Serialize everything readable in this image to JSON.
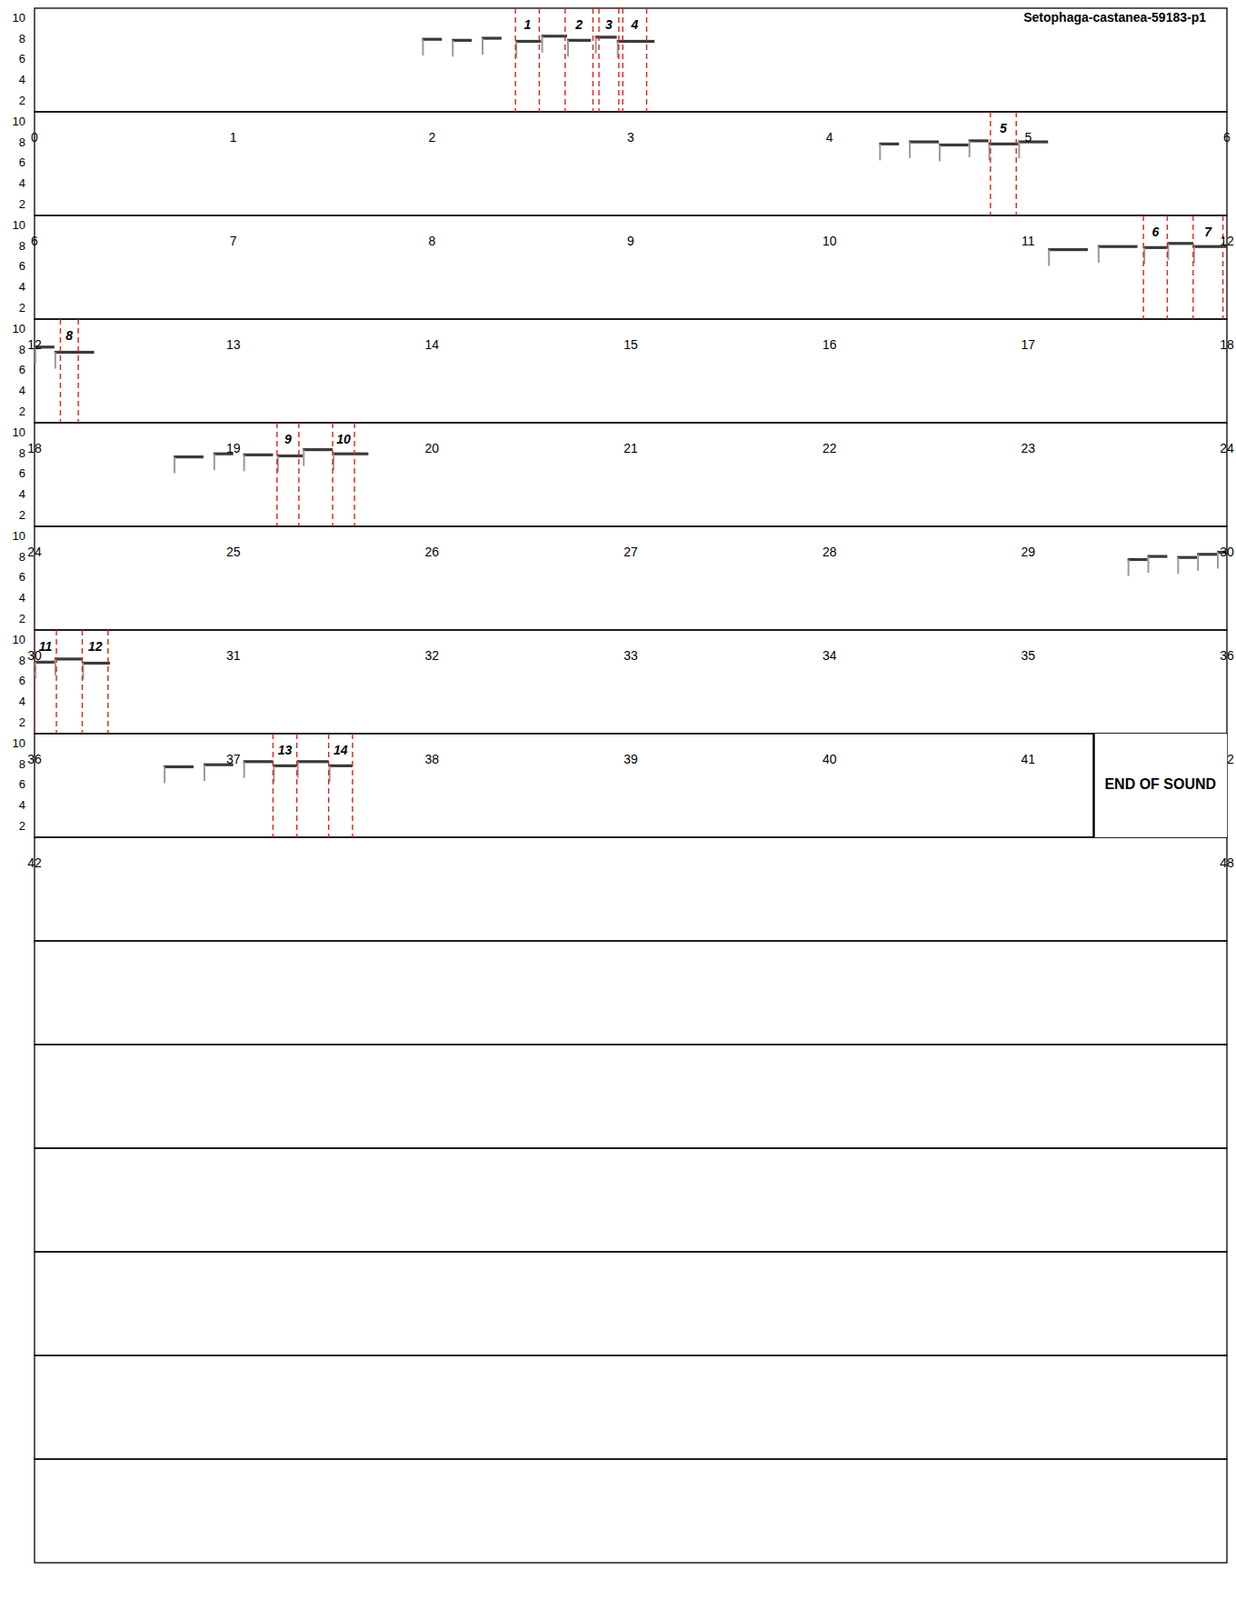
{
  "chart_data": {
    "type": "spectrogram",
    "title": "Setophaga-castanea-59183-p1",
    "ylim": [
      1,
      11
    ],
    "yticks": [
      2,
      4,
      6,
      8,
      10
    ],
    "rows": [
      {
        "xlim": [
          0,
          6
        ],
        "xticks": [
          0,
          1,
          2,
          3,
          4,
          5,
          6
        ],
        "notes": [
          {
            "start": 1.95,
            "end": 2.05,
            "freq": 8.0
          },
          {
            "start": 2.1,
            "end": 2.2,
            "freq": 7.9
          },
          {
            "start": 2.25,
            "end": 2.35,
            "freq": 8.1
          },
          {
            "start": 2.42,
            "end": 2.55,
            "freq": 7.8
          },
          {
            "start": 2.55,
            "end": 2.68,
            "freq": 8.3
          },
          {
            "start": 2.68,
            "end": 2.8,
            "freq": 7.9
          },
          {
            "start": 2.82,
            "end": 2.93,
            "freq": 8.2
          },
          {
            "start": 2.93,
            "end": 3.12,
            "freq": 7.8
          }
        ],
        "segments": [
          {
            "label": "1",
            "start": 2.42,
            "end": 2.54
          },
          {
            "label": "2",
            "start": 2.67,
            "end": 2.81
          },
          {
            "label": "3",
            "start": 2.84,
            "end": 2.94
          },
          {
            "label": "4",
            "start": 2.96,
            "end": 3.08
          }
        ]
      },
      {
        "xlim": [
          6,
          12
        ],
        "xticks": [
          6,
          7,
          8,
          9,
          10,
          11,
          12
        ],
        "notes": [
          {
            "start": 10.25,
            "end": 10.35,
            "freq": 7.9
          },
          {
            "start": 10.4,
            "end": 10.55,
            "freq": 8.1
          },
          {
            "start": 10.55,
            "end": 10.7,
            "freq": 7.8
          },
          {
            "start": 10.7,
            "end": 10.8,
            "freq": 8.2
          },
          {
            "start": 10.8,
            "end": 10.95,
            "freq": 7.9
          },
          {
            "start": 10.95,
            "end": 11.1,
            "freq": 8.1
          }
        ],
        "segments": [
          {
            "label": "5",
            "start": 10.81,
            "end": 10.94
          }
        ]
      },
      {
        "xlim": [
          12,
          18
        ],
        "xticks": [
          12,
          13,
          14,
          15,
          16,
          17,
          18
        ],
        "notes": [
          {
            "start": 17.1,
            "end": 17.3,
            "freq": 7.7
          },
          {
            "start": 17.35,
            "end": 17.55,
            "freq": 8.0
          },
          {
            "start": 17.58,
            "end": 17.7,
            "freq": 7.9
          },
          {
            "start": 17.7,
            "end": 17.83,
            "freq": 8.3
          },
          {
            "start": 17.83,
            "end": 18.0,
            "freq": 8.0
          }
        ],
        "segments": [
          {
            "label": "6",
            "start": 17.58,
            "end": 17.7
          },
          {
            "label": "7",
            "start": 17.83,
            "end": 17.98
          }
        ]
      },
      {
        "xlim": [
          18,
          24
        ],
        "xticks": [
          18,
          19,
          20,
          21,
          22,
          23,
          24
        ],
        "notes": [
          {
            "start": 18.0,
            "end": 18.1,
            "freq": 8.3
          },
          {
            "start": 18.1,
            "end": 18.3,
            "freq": 7.8
          }
        ],
        "segments": [
          {
            "label": "8",
            "start": 18.13,
            "end": 18.22
          }
        ]
      },
      {
        "xlim": [
          24,
          30
        ],
        "xticks": [
          24,
          25,
          26,
          27,
          28,
          29,
          30
        ],
        "notes": [
          {
            "start": 24.7,
            "end": 24.85,
            "freq": 7.7
          },
          {
            "start": 24.9,
            "end": 25.0,
            "freq": 8.0
          },
          {
            "start": 25.05,
            "end": 25.2,
            "freq": 7.9
          },
          {
            "start": 25.22,
            "end": 25.35,
            "freq": 7.8
          },
          {
            "start": 25.35,
            "end": 25.5,
            "freq": 8.4
          },
          {
            "start": 25.5,
            "end": 25.68,
            "freq": 8.0
          }
        ],
        "segments": [
          {
            "label": "9",
            "start": 25.22,
            "end": 25.33
          },
          {
            "label": "10",
            "start": 25.5,
            "end": 25.61
          }
        ]
      },
      {
        "xlim": [
          30,
          36
        ],
        "xticks": [
          30,
          31,
          32,
          33,
          34,
          35,
          36
        ],
        "notes": [
          {
            "start": 35.5,
            "end": 35.6,
            "freq": 7.8
          },
          {
            "start": 35.6,
            "end": 35.7,
            "freq": 8.1
          },
          {
            "start": 35.75,
            "end": 35.85,
            "freq": 8.0
          },
          {
            "start": 35.85,
            "end": 35.95,
            "freq": 8.3
          },
          {
            "start": 35.95,
            "end": 36.0,
            "freq": 8.5
          }
        ],
        "segments": []
      },
      {
        "xlim": [
          36,
          42
        ],
        "xticks": [
          36,
          37,
          38,
          39,
          40,
          41,
          42
        ],
        "notes": [
          {
            "start": 36.0,
            "end": 36.1,
            "freq": 7.9
          },
          {
            "start": 36.1,
            "end": 36.24,
            "freq": 8.2
          },
          {
            "start": 36.24,
            "end": 36.38,
            "freq": 7.8
          }
        ],
        "segments": [
          {
            "label": "11",
            "start": 36.0,
            "end": 36.11
          },
          {
            "label": "12",
            "start": 36.24,
            "end": 36.37
          }
        ]
      },
      {
        "xlim": [
          42,
          48
        ],
        "xticks": [
          42,
          48
        ],
        "notes": [
          {
            "start": 42.65,
            "end": 42.8,
            "freq": 7.8
          },
          {
            "start": 42.85,
            "end": 43.0,
            "freq": 8.0
          },
          {
            "start": 43.05,
            "end": 43.2,
            "freq": 8.3
          },
          {
            "start": 43.2,
            "end": 43.32,
            "freq": 7.9
          },
          {
            "start": 43.32,
            "end": 43.48,
            "freq": 8.3
          },
          {
            "start": 43.48,
            "end": 43.6,
            "freq": 7.9
          }
        ],
        "segments": [
          {
            "label": "13",
            "start": 43.2,
            "end": 43.32
          },
          {
            "label": "14",
            "start": 43.48,
            "end": 43.6
          }
        ]
      },
      {
        "xlim": [
          48,
          54
        ],
        "xticks": [],
        "notes": [],
        "segments": [],
        "tick_labels": false
      },
      {
        "xlim": [
          54,
          60
        ],
        "xticks": [],
        "notes": [],
        "segments": [],
        "tick_labels": false
      },
      {
        "xlim": [
          60,
          66
        ],
        "xticks": [],
        "notes": [],
        "segments": [],
        "tick_labels": false
      },
      {
        "xlim": [
          66,
          72
        ],
        "xticks": [],
        "notes": [],
        "segments": [],
        "tick_labels": false
      },
      {
        "xlim": [
          72,
          78
        ],
        "xticks": [],
        "notes": [],
        "segments": [],
        "tick_labels": false
      },
      {
        "xlim": [
          78,
          84
        ],
        "xticks": [],
        "notes": [],
        "segments": [],
        "tick_labels": false
      },
      {
        "xlim": [
          84,
          90
        ],
        "xticks": [],
        "notes": [],
        "segments": [],
        "tick_labels": false
      }
    ],
    "end_of_sound": {
      "label": "END OF SOUND",
      "row": 7,
      "time": 47.33
    }
  }
}
